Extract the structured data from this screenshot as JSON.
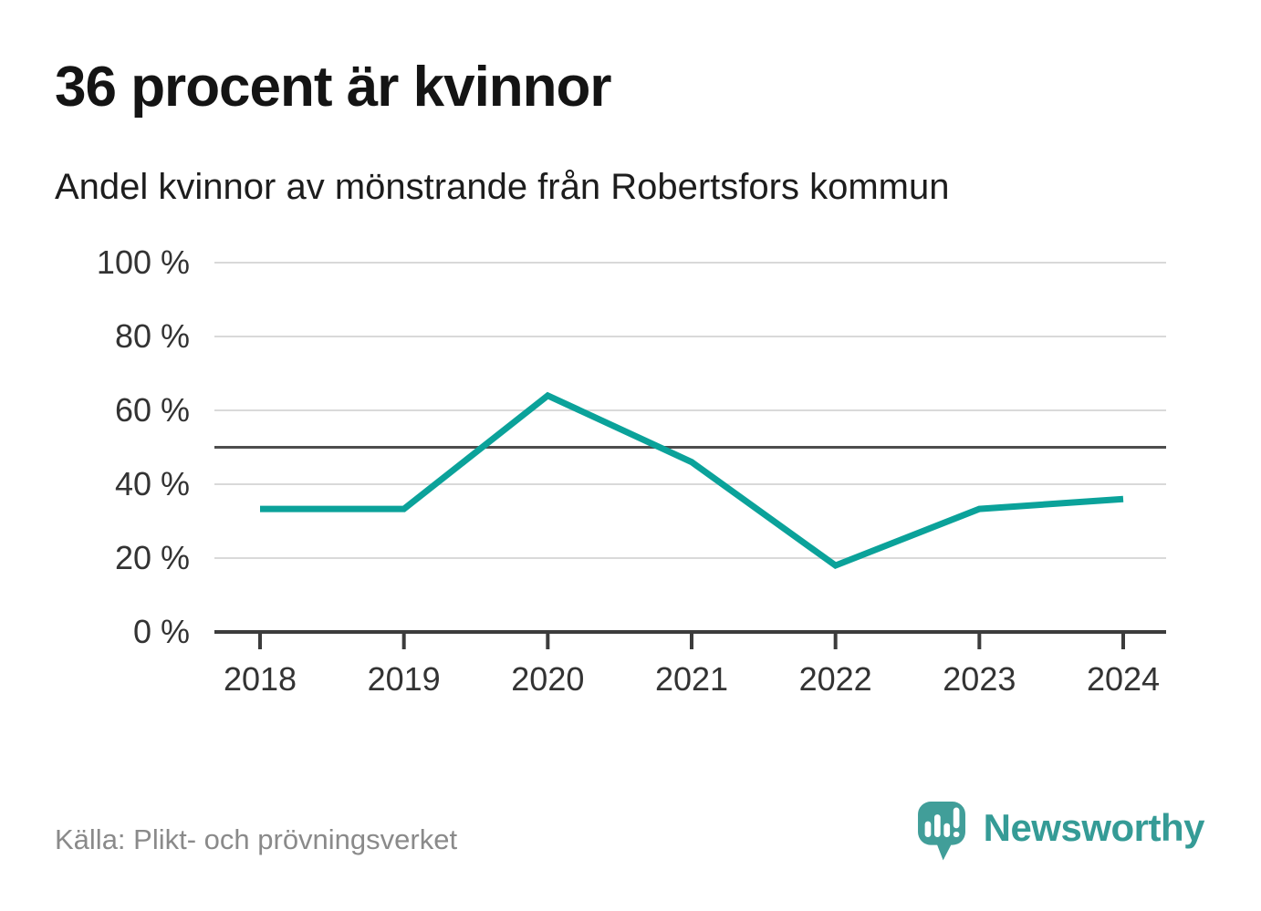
{
  "chart_data": {
    "type": "line",
    "title": "36 procent är kvinnor",
    "subtitle": "Andel kvinnor av mönstrande från Robertsfors kommun",
    "x": [
      2018,
      2019,
      2020,
      2021,
      2022,
      2023,
      2024
    ],
    "x_tick_labels": [
      "2018",
      "2019",
      "2020",
      "2021",
      "2022",
      "2023",
      "2024"
    ],
    "series": [
      {
        "name": "Andel kvinnor av mönstrande",
        "values": [
          33.3,
          33.3,
          64,
          46,
          18,
          33.3,
          36
        ]
      }
    ],
    "unit": "%",
    "ylim": [
      0,
      100
    ],
    "y_ticks": [
      0,
      20,
      40,
      60,
      80,
      100
    ],
    "y_tick_labels": [
      "0 %",
      "20 %",
      "40 %",
      "60 %",
      "80 %",
      "100 %"
    ],
    "reference_line": 50,
    "grid": true,
    "legend": "none",
    "line_color": "#0ba29a"
  },
  "footer": {
    "source": "Källa: Plikt- och prövningsverket",
    "brand": "Newsworthy"
  },
  "colors": {
    "title": "#141414",
    "subtitle": "#1d1d1d",
    "line": "#0ba29a",
    "grid": "#d9d9d9",
    "axis": "#3c3c3c",
    "reference": "#4d4d4d",
    "tick_label": "#333333",
    "source_text": "#8a8a8a",
    "brand_teal": "#359b96",
    "logo_mark": "#419e99",
    "background": "#ffffff"
  }
}
